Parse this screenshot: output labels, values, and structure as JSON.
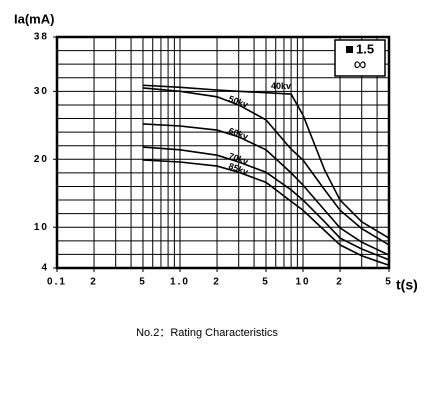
{
  "chart_data": {
    "type": "line",
    "ylabel": "Ia(mA)",
    "xlabel": "t(s)",
    "x": [
      0.5,
      1,
      2,
      3,
      5,
      8,
      10,
      15,
      20,
      30,
      50
    ],
    "series": [
      {
        "name": "40kv",
        "color": "#000000",
        "values": [
          30.9,
          30.6,
          30.2,
          30.0,
          29.8,
          29.6,
          26.5,
          18.4,
          14.0,
          10.8,
          8.4
        ]
      },
      {
        "name": "50kv",
        "color": "#000000",
        "values": [
          30.5,
          30.0,
          29.2,
          28.0,
          25.8,
          21.5,
          19.9,
          15.5,
          12.5,
          9.8,
          7.4
        ]
      },
      {
        "name": "60kv",
        "color": "#000000",
        "values": [
          25.2,
          24.9,
          24.3,
          23.3,
          21.4,
          18.0,
          16.2,
          12.5,
          9.9,
          7.8,
          5.9
        ]
      },
      {
        "name": "70kv",
        "color": "#000000",
        "values": [
          21.8,
          21.4,
          20.6,
          19.6,
          18.1,
          15.5,
          14.0,
          10.8,
          8.4,
          6.8,
          5.2
        ]
      },
      {
        "name": "85kv",
        "color": "#000000",
        "values": [
          19.9,
          19.6,
          19.0,
          18.1,
          16.6,
          13.8,
          12.5,
          9.5,
          7.4,
          5.8,
          4.4
        ]
      }
    ],
    "xlog": true,
    "xlim": [
      0.1,
      50
    ],
    "xticks": [
      0.1,
      {
        "value": 0.2,
        "label": "2"
      },
      {
        "value": 0.5,
        "label": "5"
      },
      {
        "value": 1,
        "label": "1.0"
      },
      2,
      5,
      10,
      {
        "value": 20,
        "label": "2"
      },
      {
        "value": 50,
        "label": "5"
      }
    ],
    "xgrid": [
      0.1,
      0.2,
      0.3,
      0.4,
      0.5,
      0.6,
      0.7,
      0.8,
      0.9,
      1,
      2,
      3,
      4,
      5,
      6,
      7,
      8,
      9,
      10,
      20,
      30,
      40,
      50
    ],
    "ylim": [
      4,
      38
    ],
    "yticks": [
      4,
      10,
      20,
      30,
      38
    ],
    "ygrid": [
      4,
      6,
      8,
      10,
      12,
      14,
      16,
      18,
      20,
      22,
      24,
      26,
      28,
      30,
      32,
      34,
      36,
      38
    ],
    "grid": true,
    "annotations": [
      "1.5",
      "∞"
    ]
  },
  "caption": "No.2：Rating Characteristics"
}
